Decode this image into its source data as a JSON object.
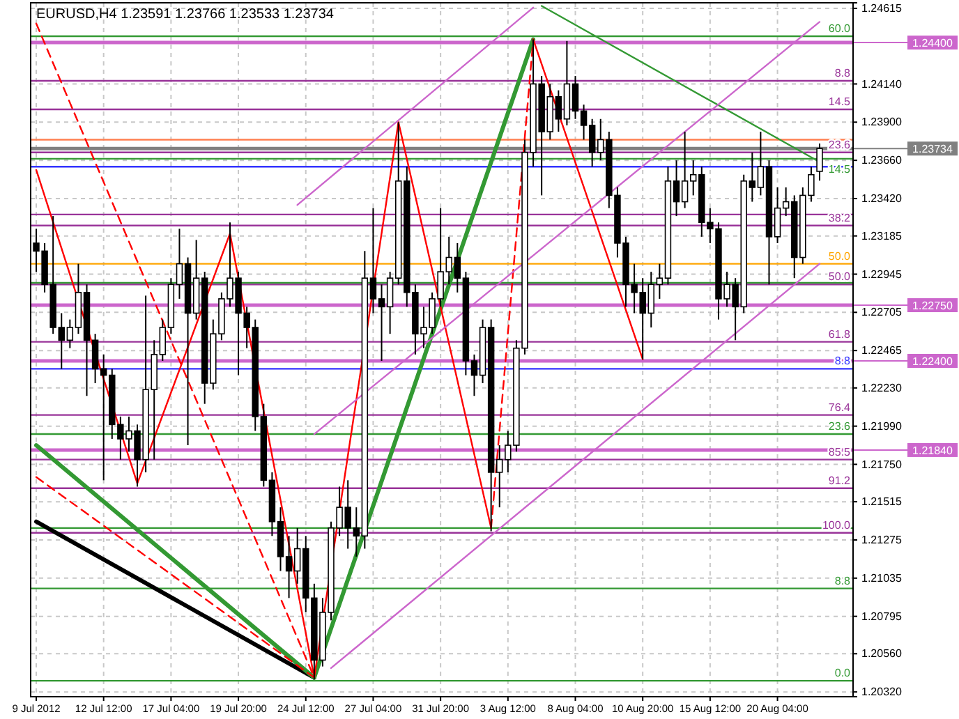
{
  "chart_data": {
    "type": "candlestick",
    "title": "EURUSD,H4  1.23591 1.23766 1.23533 1.23734",
    "categories": [
      "9 Jul 2012",
      null,
      null,
      null,
      null,
      null,
      null,
      null,
      "12 Jul 12:00",
      null,
      null,
      null,
      null,
      null,
      null,
      null,
      "17 Jul 04:00",
      null,
      null,
      null,
      null,
      null,
      null,
      null,
      "19 Jul 20:00",
      null,
      null,
      null,
      null,
      null,
      null,
      null,
      "24 Jul 12:00",
      null,
      null,
      null,
      null,
      null,
      null,
      null,
      "27 Jul 04:00",
      null,
      null,
      null,
      null,
      null,
      null,
      null,
      "31 Jul 20:00",
      null,
      null,
      null,
      null,
      null,
      null,
      null,
      "3 Aug 12:00",
      null,
      null,
      null,
      null,
      null,
      null,
      null,
      "8 Aug 04:00",
      null,
      null,
      null,
      null,
      null,
      null,
      null,
      "10 Aug 20:00",
      null,
      null,
      null,
      null,
      null,
      null,
      null,
      "15 Aug 12:00",
      null,
      null,
      null,
      null,
      null,
      null,
      null,
      "20 Aug 04:00",
      null,
      null,
      null,
      null,
      null
    ],
    "ohlc": [
      [
        1.2314,
        1.2323,
        1.2296,
        1.2309
      ],
      [
        1.2309,
        1.2314,
        1.2283,
        1.2288
      ],
      [
        1.2288,
        1.2331,
        1.2257,
        1.2261
      ],
      [
        1.2261,
        1.227,
        1.2235,
        1.2253
      ],
      [
        1.2253,
        1.2266,
        1.2248,
        1.2261
      ],
      [
        1.2261,
        1.2301,
        1.2257,
        1.2283
      ],
      [
        1.2283,
        1.2288,
        1.2218,
        1.2253
      ],
      [
        1.2253,
        1.2257,
        1.2226,
        1.2235
      ],
      [
        1.2235,
        1.2244,
        1.2165,
        1.2231
      ],
      [
        1.2231,
        1.2235,
        1.2191,
        1.22
      ],
      [
        1.22,
        1.2205,
        1.2178,
        1.2191
      ],
      [
        1.2191,
        1.2205,
        1.2183,
        1.2196
      ],
      [
        1.2196,
        1.22,
        1.2161,
        1.2178
      ],
      [
        1.2178,
        1.2281,
        1.217,
        1.2222
      ],
      [
        1.2222,
        1.2253,
        1.2178,
        1.2244
      ],
      [
        1.2244,
        1.2266,
        1.224,
        1.2261
      ],
      [
        1.2261,
        1.2292,
        1.2257,
        1.2288
      ],
      [
        1.2288,
        1.2323,
        1.2279,
        1.2301
      ],
      [
        1.2301,
        1.2305,
        1.2187,
        1.227
      ],
      [
        1.227,
        1.2316,
        1.2266,
        1.2292
      ],
      [
        1.2292,
        1.2296,
        1.2213,
        1.2226
      ],
      [
        1.2226,
        1.2266,
        1.2222,
        1.2257
      ],
      [
        1.2257,
        1.2283,
        1.2253,
        1.2279
      ],
      [
        1.2279,
        1.2327,
        1.2274,
        1.2292
      ],
      [
        1.2292,
        1.2296,
        1.2231,
        1.227
      ],
      [
        1.227,
        1.2274,
        1.2248,
        1.2261
      ],
      [
        1.2261,
        1.2266,
        1.2196,
        1.2205
      ],
      [
        1.2205,
        1.2213,
        1.2161,
        1.2165
      ],
      [
        1.2165,
        1.217,
        1.213,
        1.2139
      ],
      [
        1.2139,
        1.2148,
        1.2108,
        1.2117
      ],
      [
        1.2117,
        1.213,
        1.2091,
        1.2108
      ],
      [
        1.2108,
        1.2135,
        1.21,
        1.2122
      ],
      [
        1.2122,
        1.213,
        1.2082,
        1.2091
      ],
      [
        1.2091,
        1.21,
        1.204,
        1.2052
      ],
      [
        1.2052,
        1.2091,
        1.2048,
        1.2082
      ],
      [
        1.2082,
        1.2139,
        1.2077,
        1.2135
      ],
      [
        1.2135,
        1.2161,
        1.213,
        1.2148
      ],
      [
        1.2148,
        1.2165,
        1.2122,
        1.2135
      ],
      [
        1.2135,
        1.2148,
        1.2117,
        1.213
      ],
      [
        1.213,
        1.2309,
        1.2122,
        1.2292
      ],
      [
        1.2292,
        1.2336,
        1.227,
        1.2279
      ],
      [
        1.2279,
        1.2288,
        1.224,
        1.2274
      ],
      [
        1.2274,
        1.2296,
        1.2257,
        1.2292
      ],
      [
        1.2292,
        1.239,
        1.2288,
        1.2353
      ],
      [
        1.2353,
        1.2362,
        1.2274,
        1.2283
      ],
      [
        1.2283,
        1.2288,
        1.2244,
        1.2257
      ],
      [
        1.2257,
        1.2274,
        1.2248,
        1.2261
      ],
      [
        1.2261,
        1.2283,
        1.2257,
        1.2279
      ],
      [
        1.2279,
        1.2336,
        1.2274,
        1.2296
      ],
      [
        1.2296,
        1.2318,
        1.2288,
        1.2305
      ],
      [
        1.2305,
        1.2314,
        1.2283,
        1.2292
      ],
      [
        1.2292,
        1.2296,
        1.2231,
        1.224
      ],
      [
        1.224,
        1.2244,
        1.2218,
        1.2231
      ],
      [
        1.2231,
        1.2266,
        1.2226,
        1.2261
      ],
      [
        1.2261,
        1.2266,
        1.2133,
        1.217
      ],
      [
        1.217,
        1.2187,
        1.2148,
        1.2178
      ],
      [
        1.2178,
        1.2196,
        1.217,
        1.2187
      ],
      [
        1.2187,
        1.2253,
        1.2183,
        1.2248
      ],
      [
        1.2248,
        1.2379,
        1.2244,
        1.2371
      ],
      [
        1.2371,
        1.2442,
        1.2362,
        1.2414
      ],
      [
        1.2414,
        1.2419,
        1.2344,
        1.2384
      ],
      [
        1.2384,
        1.2414,
        1.2379,
        1.2406
      ],
      [
        1.2406,
        1.241,
        1.2384,
        1.2392
      ],
      [
        1.2392,
        1.2441,
        1.2388,
        1.2414
      ],
      [
        1.2414,
        1.2419,
        1.2392,
        1.2397
      ],
      [
        1.2397,
        1.2401,
        1.2379,
        1.2388
      ],
      [
        1.2388,
        1.2392,
        1.2362,
        1.2371
      ],
      [
        1.2371,
        1.2392,
        1.2366,
        1.2379
      ],
      [
        1.2379,
        1.2384,
        1.2336,
        1.2344
      ],
      [
        1.2344,
        1.2349,
        1.2305,
        1.2314
      ],
      [
        1.2314,
        1.2318,
        1.2274,
        1.2288
      ],
      [
        1.2288,
        1.2301,
        1.227,
        1.2283
      ],
      [
        1.2283,
        1.2292,
        1.2241,
        1.227
      ],
      [
        1.227,
        1.2296,
        1.2261,
        1.2288
      ],
      [
        1.2288,
        1.2301,
        1.2279,
        1.2292
      ],
      [
        1.2292,
        1.2362,
        1.2288,
        1.2353
      ],
      [
        1.2353,
        1.2366,
        1.2331,
        1.234
      ],
      [
        1.234,
        1.2384,
        1.2336,
        1.2353
      ],
      [
        1.2353,
        1.2366,
        1.2344,
        1.2357
      ],
      [
        1.2357,
        1.2362,
        1.2318,
        1.2327
      ],
      [
        1.2327,
        1.2336,
        1.2314,
        1.2323
      ],
      [
        1.2323,
        1.2327,
        1.2266,
        1.2279
      ],
      [
        1.2279,
        1.2296,
        1.2274,
        1.2288
      ],
      [
        1.2288,
        1.2292,
        1.2253,
        1.2274
      ],
      [
        1.2274,
        1.2357,
        1.227,
        1.2353
      ],
      [
        1.2353,
        1.2371,
        1.234,
        1.2349
      ],
      [
        1.2349,
        1.2384,
        1.2344,
        1.2362
      ],
      [
        1.2362,
        1.2366,
        1.2288,
        1.2318
      ],
      [
        1.2318,
        1.2349,
        1.2314,
        1.2336
      ],
      [
        1.2336,
        1.2349,
        1.2331,
        1.234
      ],
      [
        1.234,
        1.2344,
        1.2292,
        1.2305
      ],
      [
        1.2305,
        1.2349,
        1.2301,
        1.2344
      ],
      [
        1.2344,
        1.2362,
        1.234,
        1.2357
      ],
      [
        1.23591,
        1.23766,
        1.23533,
        1.23734
      ]
    ],
    "series": [
      {
        "type": "line",
        "values": [
          1.2139,
          null,
          null,
          null,
          null,
          null,
          null,
          null,
          null,
          null,
          null,
          null,
          null,
          null,
          null,
          null,
          null,
          null,
          null,
          null,
          null,
          null,
          null,
          null,
          null,
          null,
          null,
          null,
          null,
          null,
          null,
          null,
          null,
          1.2041,
          null,
          null,
          null,
          null,
          null,
          null,
          null,
          null,
          null,
          null,
          null,
          null,
          null,
          null,
          null,
          null,
          null,
          null,
          null,
          null,
          null,
          null,
          null,
          null,
          null,
          null,
          null,
          null,
          null,
          null,
          null,
          null,
          null,
          null,
          null,
          null,
          null,
          null,
          null,
          null,
          null,
          null,
          null,
          null,
          null,
          null,
          null,
          null,
          null,
          null,
          null,
          null,
          null,
          null,
          null,
          null,
          null,
          null,
          null,
          null
        ],
        "color": "#000000",
        "line_style": "solid"
      },
      {
        "type": "line",
        "values": [
          1.2187,
          null,
          null,
          null,
          null,
          null,
          null,
          null,
          null,
          null,
          null,
          null,
          null,
          null,
          null,
          null,
          null,
          null,
          null,
          null,
          null,
          null,
          null,
          null,
          null,
          null,
          null,
          null,
          null,
          null,
          null,
          null,
          null,
          1.2041,
          null,
          null,
          null,
          null,
          null,
          null,
          null,
          null,
          null,
          null,
          null,
          null,
          null,
          null,
          null,
          null,
          null,
          null,
          null,
          null,
          null,
          null,
          null,
          null,
          null,
          1.2442,
          null,
          null,
          null,
          null,
          null,
          null,
          null,
          null,
          null,
          null,
          null,
          null,
          null,
          null,
          null,
          null,
          null,
          null,
          null,
          null,
          null,
          null,
          null,
          null,
          null,
          null,
          null,
          null,
          null,
          null,
          null,
          null,
          null,
          null
        ],
        "color": "#339933",
        "line_style": "solid"
      },
      {
        "type": "line",
        "values": [
          1.236,
          null,
          null,
          null,
          null,
          null,
          null,
          null,
          null,
          null,
          null,
          null,
          1.2163,
          null,
          null,
          null,
          null,
          null,
          null,
          null,
          null,
          null,
          null,
          1.232,
          null,
          null,
          null,
          null,
          null,
          null,
          null,
          null,
          null,
          1.2041,
          null,
          null,
          null,
          null,
          null,
          null,
          null,
          null,
          null,
          1.239,
          null,
          null,
          null,
          null,
          null,
          null,
          null,
          null,
          null,
          null,
          1.2135,
          null,
          null,
          null,
          null,
          null,
          null,
          null,
          null,
          null,
          null,
          null,
          null,
          null,
          null,
          null,
          null,
          null,
          null,
          null,
          null,
          null,
          null,
          null,
          null,
          null,
          null,
          null,
          null,
          null,
          null,
          null,
          null,
          null,
          null,
          null,
          null,
          null,
          null,
          null
        ],
        "color": "#ff0000",
        "line_style": "solid"
      },
      {
        "type": "line",
        "values": [
          1.2452,
          null,
          null,
          null,
          null,
          null,
          null,
          null,
          null,
          null,
          null,
          null,
          null,
          null,
          null,
          null,
          null,
          null,
          null,
          null,
          null,
          null,
          null,
          null,
          null,
          null,
          null,
          null,
          null,
          null,
          null,
          null,
          null,
          1.2041,
          null,
          null,
          null,
          null,
          null,
          null,
          null,
          null,
          null,
          null,
          null,
          null,
          null,
          null,
          null,
          null,
          null,
          null,
          null,
          null,
          null,
          null,
          null,
          null,
          null,
          null,
          null,
          null,
          null,
          null,
          null,
          null,
          null,
          null,
          null,
          null,
          null,
          null,
          null,
          null,
          null,
          null,
          null,
          null,
          null,
          null,
          null,
          null,
          null,
          null,
          null,
          null,
          null,
          null,
          null,
          null,
          null,
          null,
          null,
          null
        ],
        "color": "#ff0000",
        "line_style": "dashed"
      },
      {
        "type": "line",
        "values": [
          1.2167,
          null,
          null,
          null,
          null,
          null,
          null,
          null,
          null,
          null,
          null,
          null,
          null,
          null,
          null,
          null,
          null,
          null,
          null,
          null,
          null,
          null,
          null,
          null,
          null,
          null,
          null,
          null,
          null,
          null,
          null,
          null,
          null,
          1.2041,
          null,
          null,
          null,
          null,
          null,
          null,
          null,
          null,
          null,
          null,
          null,
          null,
          null,
          null,
          null,
          null,
          null,
          null,
          null,
          null,
          null,
          null,
          null,
          null,
          null,
          null,
          null,
          null,
          null,
          null,
          null,
          null,
          null,
          null,
          null,
          null,
          null,
          null,
          null,
          null,
          null,
          null,
          null,
          null,
          null,
          null,
          null,
          null,
          null,
          null,
          null,
          null,
          null,
          null,
          null,
          null,
          null,
          null,
          null,
          null
        ],
        "color": "#ff0000",
        "line_style": "dashed"
      },
      {
        "type": "line",
        "values": [
          null,
          null,
          null,
          null,
          null,
          null,
          null,
          null,
          null,
          null,
          null,
          null,
          null,
          null,
          null,
          null,
          null,
          null,
          null,
          null,
          null,
          null,
          null,
          null,
          null,
          null,
          null,
          null,
          null,
          null,
          null,
          null,
          null,
          null,
          null,
          null,
          null,
          null,
          null,
          null,
          null,
          null,
          null,
          null,
          null,
          null,
          null,
          null,
          null,
          null,
          null,
          null,
          null,
          null,
          1.2135,
          null,
          null,
          null,
          null,
          1.2442,
          null,
          null,
          null,
          null,
          null,
          null,
          null,
          null,
          null,
          null,
          null,
          null,
          null,
          null,
          null,
          null,
          null,
          null,
          null,
          null,
          null,
          null,
          null,
          null,
          null,
          null,
          null,
          null,
          null,
          null,
          null,
          null,
          null,
          null
        ],
        "color": "#ff0000",
        "line_style": "dashed"
      },
      {
        "type": "line",
        "values": [
          null,
          null,
          null,
          null,
          null,
          null,
          null,
          null,
          null,
          null,
          null,
          null,
          null,
          null,
          null,
          null,
          null,
          null,
          null,
          null,
          null,
          null,
          null,
          null,
          null,
          null,
          null,
          null,
          null,
          null,
          null,
          null,
          null,
          null,
          null,
          null,
          null,
          null,
          null,
          null,
          null,
          null,
          null,
          null,
          null,
          null,
          null,
          null,
          null,
          null,
          null,
          null,
          null,
          null,
          null,
          null,
          null,
          null,
          null,
          1.2442,
          null,
          null,
          null,
          null,
          null,
          null,
          null,
          null,
          null,
          null,
          null,
          null,
          1.2241,
          null,
          null,
          null,
          null,
          null,
          null,
          null,
          null,
          null,
          null,
          null,
          null,
          null,
          null,
          null,
          null,
          null,
          null,
          null,
          null,
          null
        ],
        "color": "#ff0000",
        "line_style": "solid"
      },
      {
        "type": "line",
        "values": [
          null,
          null,
          null,
          null,
          null,
          null,
          null,
          null,
          null,
          null,
          null,
          null,
          null,
          null,
          null,
          null,
          null,
          null,
          null,
          null,
          null,
          null,
          null,
          null,
          null,
          null,
          null,
          null,
          null,
          null,
          null,
          null,
          null,
          null,
          null,
          null,
          null,
          null,
          null,
          null,
          null,
          null,
          null,
          null,
          null,
          null,
          null,
          null,
          null,
          null,
          null,
          null,
          null,
          null,
          null,
          null,
          null,
          null,
          null,
          null,
          1.2463,
          null,
          null,
          null,
          null,
          null,
          null,
          null,
          null,
          null,
          null,
          null,
          null,
          null,
          null,
          null,
          null,
          null,
          null,
          null,
          null,
          null,
          null,
          null,
          null,
          null,
          null,
          null,
          null,
          null,
          null,
          null,
          null,
          1.2365
        ],
        "color": "#339933",
        "line_style": "solid"
      },
      {
        "type": "line",
        "values": [
          null,
          null,
          null,
          null,
          null,
          null,
          null,
          null,
          null,
          null,
          null,
          null,
          null,
          null,
          null,
          null,
          null,
          null,
          null,
          null,
          null,
          null,
          null,
          null,
          null,
          null,
          null,
          null,
          null,
          null,
          null,
          1.2338,
          null,
          null,
          null,
          null,
          null,
          null,
          null,
          null,
          null,
          null,
          null,
          null,
          null,
          null,
          null,
          null,
          null,
          null,
          null,
          null,
          null,
          null,
          null,
          null,
          null,
          null,
          null,
          1.2462,
          null,
          null,
          null,
          null,
          null,
          null,
          null,
          null,
          null,
          null,
          null,
          null,
          null,
          null,
          null,
          null,
          null,
          null,
          null,
          null,
          null,
          null,
          null,
          null,
          null,
          null,
          null,
          null,
          null,
          null,
          null,
          null,
          null,
          null
        ],
        "color": "#cc66cc",
        "line_style": "solid"
      },
      {
        "type": "line",
        "values": [
          null,
          null,
          null,
          null,
          null,
          null,
          null,
          null,
          null,
          null,
          null,
          null,
          null,
          null,
          null,
          null,
          null,
          null,
          null,
          null,
          null,
          null,
          null,
          null,
          null,
          null,
          null,
          null,
          null,
          null,
          null,
          null,
          null,
          1.2194,
          null,
          null,
          null,
          null,
          null,
          null,
          null,
          null,
          null,
          null,
          null,
          null,
          null,
          null,
          null,
          null,
          null,
          null,
          null,
          null,
          null,
          null,
          null,
          null,
          null,
          null,
          null,
          null,
          null,
          null,
          null,
          null,
          null,
          null,
          null,
          null,
          null,
          null,
          null,
          null,
          null,
          null,
          null,
          null,
          null,
          null,
          null,
          null,
          null,
          null,
          null,
          null,
          null,
          null,
          null,
          null,
          null,
          null,
          null,
          1.2453
        ],
        "color": "#cc66cc",
        "line_style": "solid"
      },
      {
        "type": "line",
        "values": [
          null,
          null,
          null,
          null,
          null,
          null,
          null,
          null,
          null,
          null,
          null,
          null,
          null,
          null,
          null,
          null,
          null,
          null,
          null,
          null,
          null,
          null,
          null,
          null,
          null,
          null,
          null,
          null,
          null,
          null,
          null,
          null,
          null,
          null,
          null,
          1.2047,
          null,
          null,
          null,
          null,
          null,
          null,
          null,
          null,
          null,
          null,
          null,
          null,
          null,
          null,
          null,
          null,
          null,
          null,
          null,
          null,
          null,
          null,
          null,
          null,
          null,
          null,
          null,
          null,
          null,
          null,
          null,
          null,
          null,
          null,
          null,
          null,
          null,
          null,
          null,
          null,
          null,
          null,
          null,
          null,
          null,
          null,
          null,
          null,
          null,
          null,
          null,
          null,
          null,
          null,
          null,
          null,
          null,
          1.2301
        ],
        "color": "#cc66cc",
        "line_style": "solid"
      }
    ],
    "ylim": [
      1.2029,
      1.2465
    ],
    "yticks": [
      1.24615,
      {
        "value": 1.2414,
        "label": "1.24140"
      },
      {
        "value": 1.239,
        "label": "1.23900"
      },
      {
        "value": 1.2366,
        "label": "1.23660"
      },
      {
        "value": 1.2342,
        "label": "1.23420"
      },
      1.23185,
      1.22945,
      1.22705,
      1.22465,
      {
        "value": 1.2223,
        "label": "1.22230"
      },
      {
        "value": 1.2199,
        "label": "1.21990"
      },
      {
        "value": 1.2175,
        "label": "1.21750"
      },
      1.21515,
      1.21275,
      1.21035,
      1.20795,
      {
        "value": 1.2056,
        "label": "1.20560"
      },
      {
        "value": 1.2032,
        "label": "1.20320"
      }
    ],
    "grid": true,
    "annotations": [
      {
        "text": "60.0",
        "y": 1.2444
      },
      {
        "text": "8.8",
        "y": 1.2416
      },
      {
        "text": "14.5",
        "y": 1.2398
      },
      {
        "text": "23.6",
        "y": 1.2371
      },
      {
        "text": "14.5",
        "y": 1.2367
      },
      {
        "text": "38.2",
        "y": 1.2325
      },
      {
        "text": "50.0",
        "y": 1.2301
      },
      {
        "text": "50.0",
        "y": 1.2288
      },
      {
        "text": "61.8",
        "y": 1.2252
      },
      {
        "text": "8.8",
        "y": 1.2235
      },
      {
        "text": "76.4",
        "y": 1.2206
      },
      {
        "text": "23.6",
        "y": 1.2194
      },
      {
        "text": "85.5",
        "y": 1.2178
      },
      {
        "text": "91.2",
        "y": 1.216
      },
      {
        "text": "100.0",
        "y": 1.2132
      },
      {
        "text": "8.8",
        "y": 1.2097
      },
      {
        "text": "0.0",
        "y": 1.2039
      }
    ],
    "ref_lines": [
      {
        "axis": "y",
        "value": 1.2444,
        "color": "#339933"
      },
      {
        "axis": "y",
        "value": 1.244,
        "label": "1.24400",
        "color": "#cc66cc"
      },
      {
        "axis": "y",
        "value": 1.2416,
        "color": "#993399"
      },
      {
        "axis": "y",
        "value": 1.2398,
        "color": "#993399"
      },
      {
        "axis": "y",
        "value": 1.2379,
        "color": "#ff7f50"
      },
      {
        "axis": "y",
        "value": 1.23734,
        "label": "1.23734",
        "color": "#808080"
      },
      {
        "axis": "y",
        "value": 1.2371,
        "color": "#993399"
      },
      {
        "axis": "y",
        "value": 1.2367,
        "color": "#339933"
      },
      {
        "axis": "y",
        "value": 1.2362,
        "color": "#3333ff"
      },
      {
        "axis": "y",
        "value": 1.2332,
        "color": "#993399"
      },
      {
        "axis": "y",
        "value": 1.2325,
        "color": "#993399"
      },
      {
        "axis": "y",
        "value": 1.2301,
        "color": "#ffa500"
      },
      {
        "axis": "y",
        "value": 1.2289,
        "color": "#339933"
      },
      {
        "axis": "y",
        "value": 1.2288,
        "color": "#993399"
      },
      {
        "axis": "y",
        "value": 1.2275,
        "label": "1.22750",
        "color": "#cc66cc"
      },
      {
        "axis": "y",
        "value": 1.2252,
        "color": "#993399"
      },
      {
        "axis": "y",
        "value": 1.224,
        "label": "1.22400",
        "color": "#cc66cc"
      },
      {
        "axis": "y",
        "value": 1.2235,
        "color": "#3333ff"
      },
      {
        "axis": "y",
        "value": 1.2206,
        "color": "#993399"
      },
      {
        "axis": "y",
        "value": 1.2194,
        "color": "#339933"
      },
      {
        "axis": "y",
        "value": 1.2184,
        "label": "1.21840",
        "color": "#cc66cc"
      },
      {
        "axis": "y",
        "value": 1.2178,
        "color": "#993399"
      },
      {
        "axis": "y",
        "value": 1.216,
        "color": "#993399"
      },
      {
        "axis": "y",
        "value": 1.2135,
        "color": "#339933"
      },
      {
        "axis": "y",
        "value": 1.2132,
        "color": "#993399"
      },
      {
        "axis": "y",
        "value": 1.2097,
        "color": "#339933"
      },
      {
        "axis": "y",
        "value": 1.2039,
        "color": "#339933"
      }
    ]
  }
}
